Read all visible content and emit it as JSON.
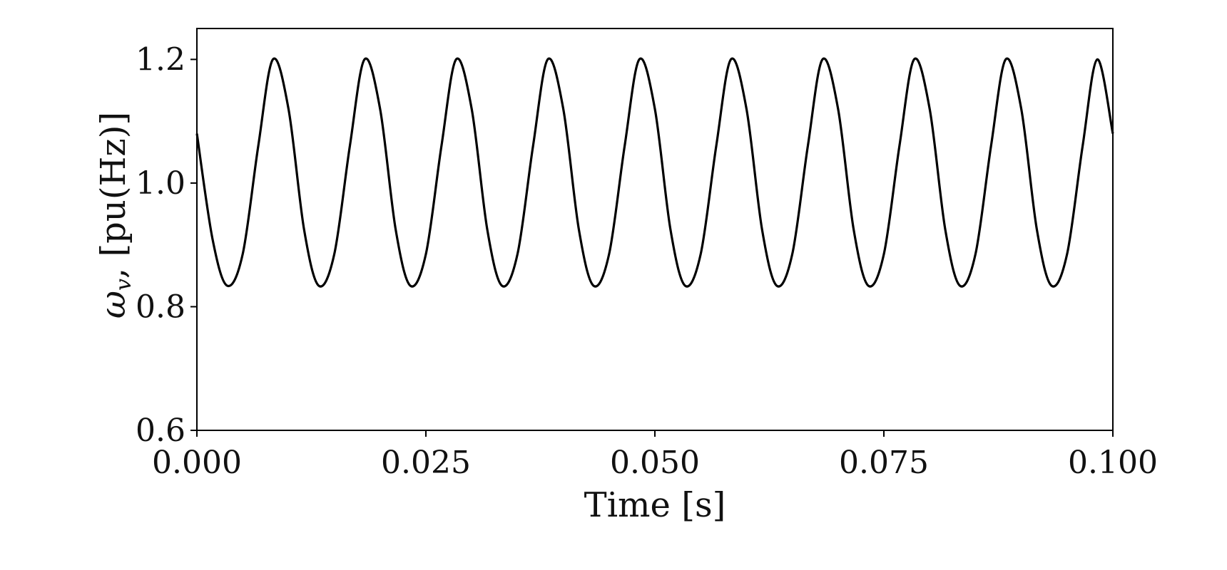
{
  "chart_data": {
    "type": "line",
    "xlabel": "Time [s]",
    "ylabel": {
      "symbol": "ω",
      "subscript": "v",
      "unit": ", [pu(Hz)]"
    },
    "xlim": [
      0.0,
      0.1
    ],
    "ylim": [
      0.6,
      1.25
    ],
    "x_ticks": [
      0.0,
      0.025,
      0.05,
      0.075,
      0.1
    ],
    "x_tick_labels": [
      "0.000",
      "0.025",
      "0.050",
      "0.075",
      "0.100"
    ],
    "y_ticks": [
      0.6,
      0.8,
      1.0,
      1.2
    ],
    "y_tick_labels": [
      "0.6",
      "0.8",
      "1.0",
      "1.2"
    ],
    "grid": false,
    "line_color": "#000000",
    "series": [
      {
        "x": [
          0.0,
          0.0017,
          0.0033,
          0.005,
          0.0067,
          0.0083,
          0.01,
          0.0117,
          0.0133,
          0.015,
          0.0167,
          0.0183,
          0.02,
          0.0217,
          0.0233,
          0.025,
          0.0267,
          0.0283,
          0.03,
          0.0317,
          0.0333,
          0.035,
          0.0367,
          0.0383,
          0.04,
          0.0417,
          0.0433,
          0.045,
          0.0467,
          0.0483,
          0.05,
          0.0517,
          0.0533,
          0.055,
          0.0567,
          0.0583,
          0.06,
          0.0617,
          0.0633,
          0.065,
          0.0667,
          0.0683,
          0.07,
          0.0717,
          0.0733,
          0.075,
          0.0767,
          0.0783,
          0.08,
          0.0817,
          0.0833,
          0.085,
          0.0867,
          0.0883,
          0.09,
          0.0917,
          0.0933,
          0.095,
          0.0967,
          0.0983,
          0.1
        ],
        "y": [
          1.08,
          0.91,
          0.834,
          0.885,
          1.06,
          1.2,
          1.12,
          0.925,
          0.834,
          0.885,
          1.06,
          1.2,
          1.12,
          0.925,
          0.834,
          0.885,
          1.06,
          1.2,
          1.12,
          0.925,
          0.834,
          0.885,
          1.06,
          1.2,
          1.12,
          0.925,
          0.834,
          0.885,
          1.06,
          1.2,
          1.12,
          0.925,
          0.834,
          0.885,
          1.06,
          1.2,
          1.12,
          0.925,
          0.834,
          0.885,
          1.06,
          1.2,
          1.12,
          0.925,
          0.834,
          0.885,
          1.06,
          1.2,
          1.12,
          0.925,
          0.834,
          0.885,
          1.06,
          1.2,
          1.12,
          0.925,
          0.834,
          0.885,
          1.06,
          1.2,
          1.08
        ]
      }
    ]
  }
}
